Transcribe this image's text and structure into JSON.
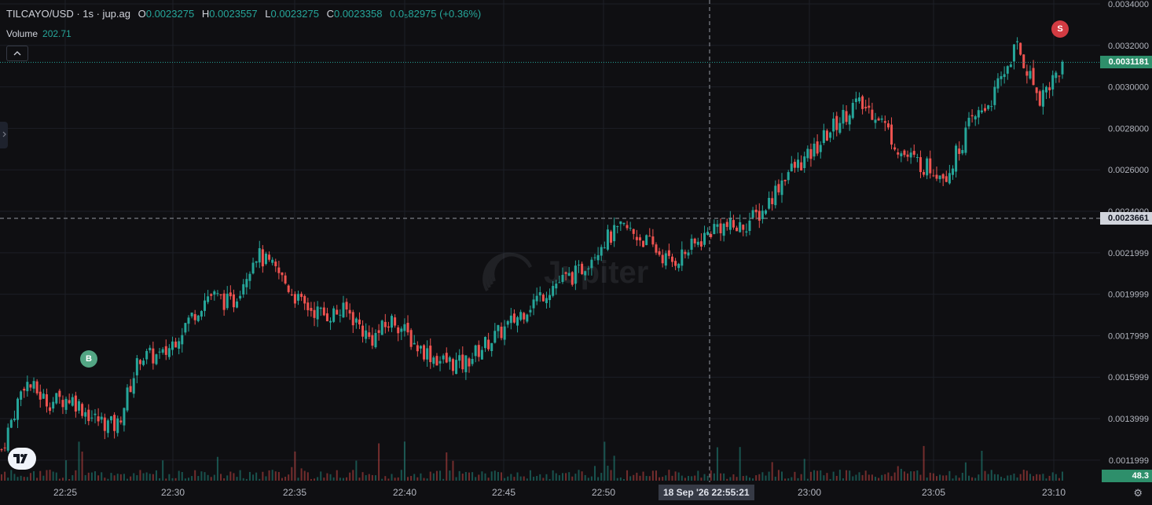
{
  "legend": {
    "symbol": "TILCAYO/USD · 1s · jup.ag",
    "open_label": "O",
    "open": "0.0023275",
    "high_label": "H",
    "high": "0.0023557",
    "low_label": "L",
    "low": "0.0023275",
    "close_label": "C",
    "close": "0.0023358",
    "change": "0.0₅82975 (+0.36%)"
  },
  "volume": {
    "label": "Volume",
    "value": "202.71"
  },
  "controls": {
    "collapse_icon": "chevron-up-icon",
    "expand_icon": "chevron-right-icon",
    "settings_icon": "gear-icon"
  },
  "markers": {
    "buy": "B",
    "sell": "S"
  },
  "watermark": "Jupiter",
  "price_axis": {
    "ticks": [
      "0.0034000",
      "0.0032000",
      "0.0030000",
      "0.0028000",
      "0.0026000",
      "0.0024000",
      "0.0021999",
      "0.0019999",
      "0.0017999",
      "0.0015999",
      "0.0013999",
      "0.0011999"
    ],
    "current_price": "0.0031181",
    "crosshair_price": "0.0023661",
    "volume_tag": "48.3"
  },
  "time_axis": {
    "ticks": [
      "22:25",
      "22:30",
      "22:35",
      "22:40",
      "22:45",
      "22:50",
      "23:00",
      "23:05",
      "23:10"
    ],
    "crosshair_time": "18 Sep '26   22:55:21"
  },
  "colors": {
    "up": "#26a69a",
    "down": "#ef5350",
    "background": "#0f0f12",
    "grid": "#1c1f26"
  },
  "chart_data": {
    "type": "candlestick",
    "x": [
      "22:23",
      "22:25",
      "22:26",
      "22:27",
      "22:28",
      "22:29",
      "22:30",
      "22:31",
      "22:32",
      "22:33",
      "22:34",
      "22:35",
      "22:36",
      "22:37",
      "22:38",
      "22:39",
      "22:40",
      "22:41",
      "22:42",
      "22:43",
      "22:44",
      "22:45",
      "22:46",
      "22:47",
      "22:48",
      "22:49",
      "22:50",
      "22:51",
      "22:52",
      "22:53",
      "22:54",
      "22:55",
      "22:56",
      "22:57",
      "22:58",
      "22:59",
      "23:00",
      "23:01",
      "23:02",
      "23:03",
      "23:04",
      "23:05",
      "23:06",
      "23:07",
      "23:08",
      "23:09",
      "23:10"
    ],
    "price": [
      0.00125,
      0.00158,
      0.00148,
      0.0015,
      0.0014,
      0.00136,
      0.0017,
      0.0017,
      0.00186,
      0.002,
      0.00195,
      0.0022,
      0.0021,
      0.00195,
      0.0019,
      0.00192,
      0.00178,
      0.00188,
      0.00175,
      0.00168,
      0.00166,
      0.00176,
      0.00185,
      0.00196,
      0.00205,
      0.0021,
      0.00225,
      0.00232,
      0.00225,
      0.00215,
      0.00223,
      0.00233,
      0.00232,
      0.0024,
      0.00258,
      0.00266,
      0.0028,
      0.00292,
      0.00287,
      0.00268,
      0.00262,
      0.00258,
      0.00282,
      0.00295,
      0.0032,
      0.00295,
      0.0031
    ],
    "ylim": [
      0.00115,
      0.0034
    ],
    "volume_axis_value": "48.3"
  }
}
